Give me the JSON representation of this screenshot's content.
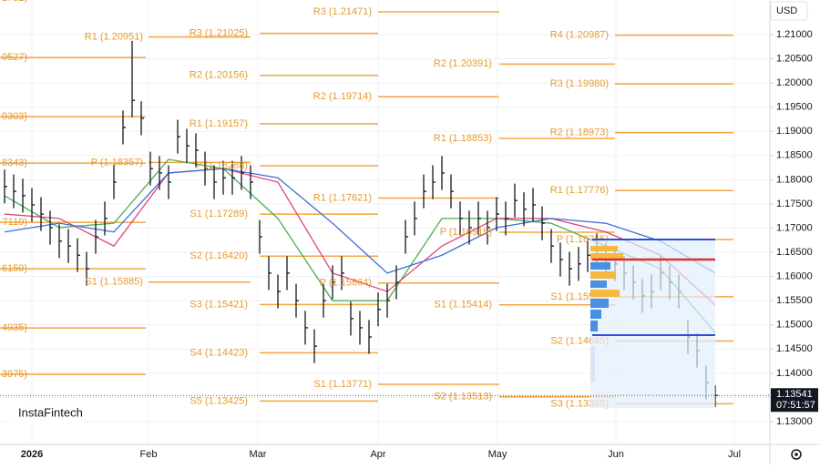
{
  "chart_data": {
    "type": "ohlc",
    "currency": "USD",
    "watermark": "InstaFintech",
    "ylim": [
      1.12529,
      1.21715
    ],
    "yticks": [
      {
        "value": 1.13,
        "label": "1.13000"
      },
      {
        "value": 1.135,
        "label": "1.13500"
      },
      {
        "value": 1.14,
        "label": "1.14000"
      },
      {
        "value": 1.145,
        "label": "1.14500"
      },
      {
        "value": 1.15,
        "label": "1.15000"
      },
      {
        "value": 1.155,
        "label": "1.15500"
      },
      {
        "value": 1.16,
        "label": "1.16000"
      },
      {
        "value": 1.165,
        "label": "1.16500"
      },
      {
        "value": 1.17,
        "label": "1.17000"
      },
      {
        "value": 1.175,
        "label": "1.17500"
      },
      {
        "value": 1.18,
        "label": "1.18000"
      },
      {
        "value": 1.185,
        "label": "1.18500"
      },
      {
        "value": 1.19,
        "label": "1.19000"
      },
      {
        "value": 1.195,
        "label": "1.19500"
      },
      {
        "value": 1.2,
        "label": "1.20000"
      },
      {
        "value": 1.205,
        "label": "1.20500"
      },
      {
        "value": 1.21,
        "label": "1.21000"
      }
    ],
    "x_labels": [
      "2026",
      "Feb",
      "Mar",
      "Apr",
      "May",
      "Jun",
      "Jul"
    ],
    "current_price": {
      "value": 1.13541,
      "label": "1.13541"
    },
    "countdown": "07:51:57",
    "color": "#131722",
    "high": [
      1.1821,
      1.1811,
      1.1802,
      1.1783,
      1.1764,
      1.1736,
      1.1708,
      1.1698,
      1.1679,
      1.1651,
      1.1717,
      1.1755,
      1.183,
      1.1943,
      1.2087,
      1.1962,
      1.1858,
      1.1849,
      1.183,
      1.1924,
      1.1905,
      1.1896,
      1.1858,
      1.183,
      1.1839,
      1.1839,
      1.1849,
      1.183,
      1.1717,
      1.1642,
      1.1604,
      1.1642,
      1.1585,
      1.1529,
      1.1491,
      1.1585,
      1.1623,
      1.1642,
      1.1548,
      1.1529,
      1.151,
      1.1567,
      1.1585,
      1.1623,
      1.1717,
      1.1755,
      1.1811,
      1.183,
      1.1849,
      1.1811,
      1.1755,
      1.1736,
      1.1755,
      1.1736,
      1.1764,
      1.1755,
      1.1792,
      1.1774,
      1.1783,
      1.1745,
      1.1698,
      1.167,
      1.1651,
      1.1661,
      1.1679,
      1.1689,
      1.167,
      1.1661,
      1.1642,
      1.1623,
      1.1595,
      1.1604,
      1.1642,
      1.1623,
      1.1604,
      1.151,
      1.1482,
      1.1416,
      1.1375
    ],
    "low": [
      1.1751,
      1.1741,
      1.1732,
      1.1713,
      1.1694,
      1.1666,
      1.1638,
      1.1628,
      1.1609,
      1.1581,
      1.1647,
      1.1685,
      1.176,
      1.1873,
      1.1929,
      1.1892,
      1.1788,
      1.1779,
      1.176,
      1.1854,
      1.1835,
      1.1826,
      1.1788,
      1.176,
      1.1769,
      1.1769,
      1.1779,
      1.176,
      1.1647,
      1.1572,
      1.1534,
      1.1572,
      1.1515,
      1.1459,
      1.1421,
      1.1515,
      1.1553,
      1.1572,
      1.1478,
      1.1459,
      1.144,
      1.1497,
      1.1515,
      1.1553,
      1.1647,
      1.1685,
      1.1741,
      1.176,
      1.1779,
      1.1741,
      1.1685,
      1.1666,
      1.1685,
      1.1666,
      1.1694,
      1.1685,
      1.1722,
      1.1704,
      1.1713,
      1.1675,
      1.1628,
      1.16,
      1.1581,
      1.1591,
      1.1609,
      1.1619,
      1.16,
      1.1591,
      1.1572,
      1.1553,
      1.1525,
      1.1534,
      1.1572,
      1.1553,
      1.1534,
      1.144,
      1.1412,
      1.1346,
      1.133
    ],
    "close": [
      1.1786,
      1.1776,
      1.1767,
      1.1748,
      1.1729,
      1.1701,
      1.1673,
      1.1663,
      1.1644,
      1.1616,
      1.1682,
      1.172,
      1.1795,
      1.1908,
      1.1964,
      1.1927,
      1.1823,
      1.1814,
      1.1795,
      1.1889,
      1.187,
      1.1861,
      1.1823,
      1.1795,
      1.1804,
      1.1804,
      1.1814,
      1.1795,
      1.1682,
      1.1607,
      1.1569,
      1.1607,
      1.155,
      1.1494,
      1.1456,
      1.155,
      1.1588,
      1.1607,
      1.1513,
      1.1494,
      1.1475,
      1.1532,
      1.155,
      1.1588,
      1.1682,
      1.172,
      1.1776,
      1.1795,
      1.1814,
      1.1776,
      1.172,
      1.1701,
      1.172,
      1.1701,
      1.1729,
      1.172,
      1.1757,
      1.1739,
      1.1748,
      1.171,
      1.1663,
      1.1635,
      1.1616,
      1.1626,
      1.1644,
      1.1654,
      1.1635,
      1.1626,
      1.1607,
      1.1588,
      1.156,
      1.1569,
      1.1607,
      1.1588,
      1.1569,
      1.1475,
      1.1447,
      1.1381,
      1.13541
    ],
    "series": [
      {
        "color": "#4caf50",
        "x": [
          0,
          6,
          12,
          18,
          24,
          30,
          36,
          42,
          48,
          54,
          60,
          66,
          72,
          78
        ],
        "values": [
          1.1767,
          1.1701,
          1.171,
          1.1842,
          1.1823,
          1.172,
          1.155,
          1.155,
          1.172,
          1.172,
          1.171,
          1.1663,
          1.1616,
          1.1484
        ]
      },
      {
        "color": "#e0457b",
        "x": [
          0,
          6,
          12,
          18,
          24,
          30,
          36,
          42,
          48,
          54,
          60,
          66,
          72,
          78
        ],
        "values": [
          1.1729,
          1.172,
          1.1663,
          1.1814,
          1.1823,
          1.1795,
          1.1607,
          1.1569,
          1.1663,
          1.172,
          1.172,
          1.1692,
          1.1644,
          1.1541
        ]
      },
      {
        "color": "#3f6fd8",
        "x": [
          0,
          6,
          12,
          18,
          24,
          30,
          36,
          42,
          48,
          54,
          60,
          66,
          72,
          78
        ],
        "values": [
          1.1692,
          1.171,
          1.1692,
          1.1814,
          1.1823,
          1.1804,
          1.171,
          1.1607,
          1.1644,
          1.1701,
          1.172,
          1.171,
          1.1673,
          1.1607
        ]
      }
    ],
    "pivot_color": "#f5a540",
    "pivots": [
      {
        "values": [
          1.21752,
          1.20527,
          1.19303,
          1.18343,
          1.17119,
          1.16159,
          1.14935,
          1.13975
        ],
        "value_labels": [
          "1752)",
          "0527)",
          "9303)",
          "8343)",
          "7119)",
          "6159)",
          "4935)",
          "3975)"
        ]
      },
      {
        "values": [
          1.20951,
          1.18357,
          1.15885
        ],
        "value_labels": [
          "R1 (1.20951)",
          "P (1.18357)",
          "S1 (1.15885)"
        ]
      },
      {
        "values": [
          1.21025,
          1.20156,
          1.19157,
          1.18288,
          1.17289,
          1.1642,
          1.15421,
          1.14423,
          1.13425
        ],
        "value_labels": [
          "R3 (1.21025)",
          "R2 (1.20156)",
          "R1 (1.19157)",
          "P (1.18288)",
          "S1 (1.17289)",
          "S2 (1.16420)",
          "S3 (1.15421)",
          "S4 (1.14423)",
          "S5 (1.13425)"
        ]
      },
      {
        "values": [
          1.21471,
          1.19714,
          1.17621,
          1.15864,
          1.13771
        ],
        "value_labels": [
          "R3 (1.21471)",
          "R2 (1.19714)",
          "R1 (1.17621)",
          "P (1.15864)",
          "S1 (1.13771)"
        ]
      },
      {
        "values": [
          1.20391,
          1.18853,
          1.16915,
          1.15414,
          1.13513
        ],
        "value_labels": [
          "R2 (1.20391)",
          "R1 (1.18853)",
          "P (1.16915)",
          "S1 (1.15414)",
          "S2 (1.13513)"
        ]
      },
      {
        "values": [
          1.20987,
          1.1998,
          1.18973,
          1.17776,
          1.16765,
          1.1558,
          1.14665,
          1.13368
        ],
        "value_labels": [
          "R4 (1.20987)",
          "R3 (1.19980)",
          "R2 (1.18973)",
          "R1 (1.17776)",
          "P (1.16765)",
          "S1 (1.15580)",
          "S2 (1.14665)",
          "S3 (1.13368)"
        ]
      }
    ]
  }
}
